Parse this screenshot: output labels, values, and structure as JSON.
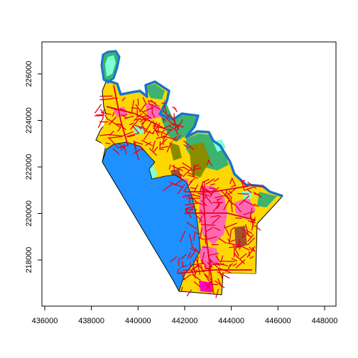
{
  "map": {
    "x_ticks": [
      "436000",
      "438000",
      "440000",
      "442000",
      "444000",
      "446000",
      "448000"
    ],
    "y_ticks": [
      "218000",
      "220000",
      "222000",
      "224000",
      "226000"
    ],
    "x_range": [
      436000,
      448000
    ],
    "y_range": [
      216500,
      226800
    ],
    "grid": false,
    "colors": {
      "water": "#1e90ff",
      "boundary": "#000000",
      "coast_outline": "#1874cd",
      "roads": "#e8001a",
      "residential": "#ffd700",
      "commercial": "#ff69b4",
      "open_space": "#3cb371",
      "wetland": "#7fffd4",
      "agriculture": "#8b8b00",
      "industrial": "#ff00c8",
      "other": "#a0522d"
    }
  }
}
